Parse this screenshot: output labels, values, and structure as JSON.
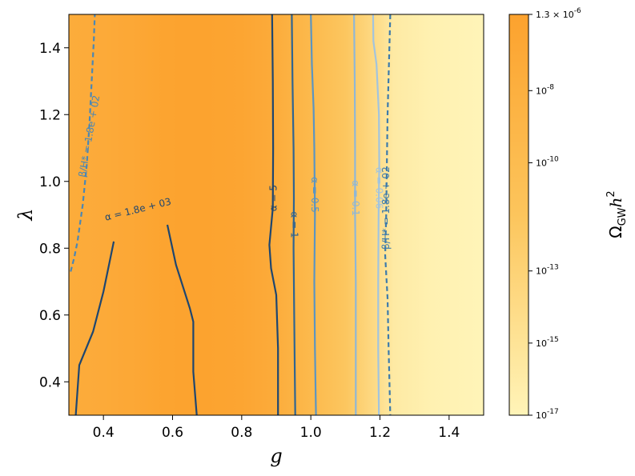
{
  "chart_data": {
    "type": "heatmap",
    "xlabel": "g",
    "ylabel": "λ",
    "xlim": [
      0.3,
      1.5
    ],
    "ylim": [
      0.3,
      1.5
    ],
    "x_ticks": [
      {
        "value": 0.4,
        "label": "0.4"
      },
      {
        "value": 0.6,
        "label": "0.6"
      },
      {
        "value": 0.8,
        "label": "0.8"
      },
      {
        "value": 1.0,
        "label": "1.0"
      },
      {
        "value": 1.2,
        "label": "1.2"
      },
      {
        "value": 1.4,
        "label": "1.4"
      }
    ],
    "y_ticks": [
      {
        "value": 0.4,
        "label": "0.4"
      },
      {
        "value": 0.6,
        "label": "0.6"
      },
      {
        "value": 0.8,
        "label": "0.8"
      },
      {
        "value": 1.0,
        "label": "1.0"
      },
      {
        "value": 1.2,
        "label": "1.2"
      },
      {
        "value": 1.4,
        "label": "1.4"
      }
    ],
    "heat_columns": [
      {
        "g": 0.3,
        "log10_omega": -7.4
      },
      {
        "g": 0.4,
        "log10_omega": -7.2
      },
      {
        "g": 0.5,
        "log10_omega": -6.7
      },
      {
        "g": 0.55,
        "log10_omega": -6.3
      },
      {
        "g": 0.62,
        "log10_omega": -6.0
      },
      {
        "g": 0.7,
        "log10_omega": -6.0
      },
      {
        "g": 0.8,
        "log10_omega": -6.4
      },
      {
        "g": 0.88,
        "log10_omega": -7.2
      },
      {
        "g": 0.95,
        "log10_omega": -8.6
      },
      {
        "g": 1.02,
        "log10_omega": -10.0
      },
      {
        "g": 1.1,
        "log10_omega": -11.6
      },
      {
        "g": 1.18,
        "log10_omega": -13.8
      },
      {
        "g": 1.24,
        "log10_omega": -15.8
      },
      {
        "g": 1.35,
        "log10_omega": -16.6
      },
      {
        "g": 1.5,
        "log10_omega": -17.0
      }
    ],
    "colorbar": {
      "title": "Ω_GW h^2",
      "scale": "log",
      "range_log10": [
        -17,
        -5.886
      ],
      "color_low": "#fff4b8",
      "color_mid": "#fcc55c",
      "color_high": "#fca22e",
      "ticks": [
        {
          "log10": -5.886,
          "label_base": "1.3 × 10",
          "label_exp": "-6"
        },
        {
          "log10": -8,
          "label_base": "10",
          "label_exp": "-8"
        },
        {
          "log10": -10,
          "label_base": "10",
          "label_exp": "-10"
        },
        {
          "log10": -13,
          "label_base": "10",
          "label_exp": "-13"
        },
        {
          "log10": -15,
          "label_base": "10",
          "label_exp": "-15"
        },
        {
          "log10": -17,
          "label_base": "10",
          "label_exp": "-17"
        }
      ]
    },
    "contours": [
      {
        "id": "beta-left",
        "label": "β/H* = 1.8e + 02",
        "color": "#4a87b5",
        "dashed": true,
        "points": [
          [
            0.305,
            0.73
          ],
          [
            0.315,
            0.77
          ],
          [
            0.325,
            0.82
          ],
          [
            0.34,
            0.93
          ],
          [
            0.352,
            1.05
          ],
          [
            0.36,
            1.18
          ],
          [
            0.366,
            1.3
          ],
          [
            0.372,
            1.42
          ],
          [
            0.375,
            1.5
          ]
        ],
        "label_at": {
          "g": 0.36,
          "lambda": 1.135,
          "angle": -80
        }
      },
      {
        "id": "alpha-1800",
        "label": "α = 1.8e + 03",
        "color": "#1e4670",
        "dashed": false,
        "points": [
          [
            0.43,
            0.82
          ],
          [
            0.42,
            0.77
          ],
          [
            0.4,
            0.67
          ],
          [
            0.37,
            0.55
          ],
          [
            0.33,
            0.45
          ],
          [
            0.32,
            0.3
          ]
        ],
        "points2": [
          [
            0.585,
            0.87
          ],
          [
            0.61,
            0.75
          ],
          [
            0.65,
            0.62
          ],
          [
            0.66,
            0.58
          ],
          [
            0.66,
            0.43
          ],
          [
            0.67,
            0.3
          ]
        ],
        "label_at": {
          "g": 0.5,
          "lambda": 0.915,
          "angle": -14
        }
      },
      {
        "id": "alpha-5",
        "label": "α = 5",
        "color": "#1e4670",
        "dashed": false,
        "points": [
          [
            0.888,
            1.5
          ],
          [
            0.89,
            1.3
          ],
          [
            0.891,
            1.1
          ],
          [
            0.89,
            0.92
          ],
          [
            0.88,
            0.81
          ],
          [
            0.885,
            0.74
          ],
          [
            0.9,
            0.66
          ],
          [
            0.905,
            0.5
          ],
          [
            0.905,
            0.3
          ]
        ],
        "label_at": {
          "g": 0.893,
          "lambda": 0.95,
          "angle": -90
        }
      },
      {
        "id": "alpha-1",
        "label": "α = 1",
        "color": "#2f6592",
        "dashed": false,
        "points": [
          [
            0.945,
            1.5
          ],
          [
            0.947,
            1.3
          ],
          [
            0.95,
            1.1
          ],
          [
            0.951,
            0.95
          ],
          [
            0.95,
            0.8
          ],
          [
            0.952,
            0.6
          ],
          [
            0.955,
            0.3
          ]
        ],
        "label_at": {
          "g": 0.951,
          "lambda": 0.87,
          "angle": 90
        }
      },
      {
        "id": "alpha-0.5",
        "label": "α = 0.5",
        "color": "#5b95c2",
        "dashed": false,
        "points": [
          [
            1.0,
            1.5
          ],
          [
            1.003,
            1.35
          ],
          [
            1.008,
            1.22
          ],
          [
            1.01,
            1.1
          ],
          [
            1.012,
            0.9
          ],
          [
            1.01,
            0.7
          ],
          [
            1.012,
            0.5
          ],
          [
            1.015,
            0.3
          ]
        ],
        "label_at": {
          "g": 1.01,
          "lambda": 0.96,
          "angle": 90
        }
      },
      {
        "id": "alpha-0.1",
        "label": "α = 0.1",
        "color": "#8fb7d6",
        "dashed": false,
        "points": [
          [
            1.125,
            1.5
          ],
          [
            1.127,
            1.3
          ],
          [
            1.128,
            1.1
          ],
          [
            1.128,
            0.9
          ],
          [
            1.13,
            0.7
          ],
          [
            1.13,
            0.3
          ]
        ],
        "label_at": {
          "g": 1.128,
          "lambda": 0.95,
          "angle": 90
        }
      },
      {
        "id": "alpha-0.06",
        "label": "α = 0.06",
        "color": "#a2c4de",
        "dashed": false,
        "points": [
          [
            1.18,
            1.5
          ],
          [
            1.181,
            1.42
          ],
          [
            1.19,
            1.35
          ],
          [
            1.197,
            1.2
          ],
          [
            1.198,
            1.05
          ],
          [
            1.196,
            0.9
          ],
          [
            1.195,
            0.7
          ],
          [
            1.195,
            0.5
          ],
          [
            1.197,
            0.3
          ]
        ],
        "label_at": {
          "g": 1.196,
          "lambda": 0.98,
          "angle": 90
        }
      },
      {
        "id": "beta-right",
        "label": "β/H* = 1.8e + 02",
        "color": "#3d7bab",
        "dashed": true,
        "points": [
          [
            1.23,
            1.5
          ],
          [
            1.226,
            1.35
          ],
          [
            1.222,
            1.2
          ],
          [
            1.22,
            1.05
          ],
          [
            1.218,
            0.9
          ],
          [
            1.215,
            0.78
          ],
          [
            1.222,
            0.65
          ],
          [
            1.225,
            0.5
          ],
          [
            1.23,
            0.3
          ]
        ],
        "label_at": {
          "g": 1.219,
          "lambda": 0.92,
          "angle": -90
        }
      }
    ]
  }
}
